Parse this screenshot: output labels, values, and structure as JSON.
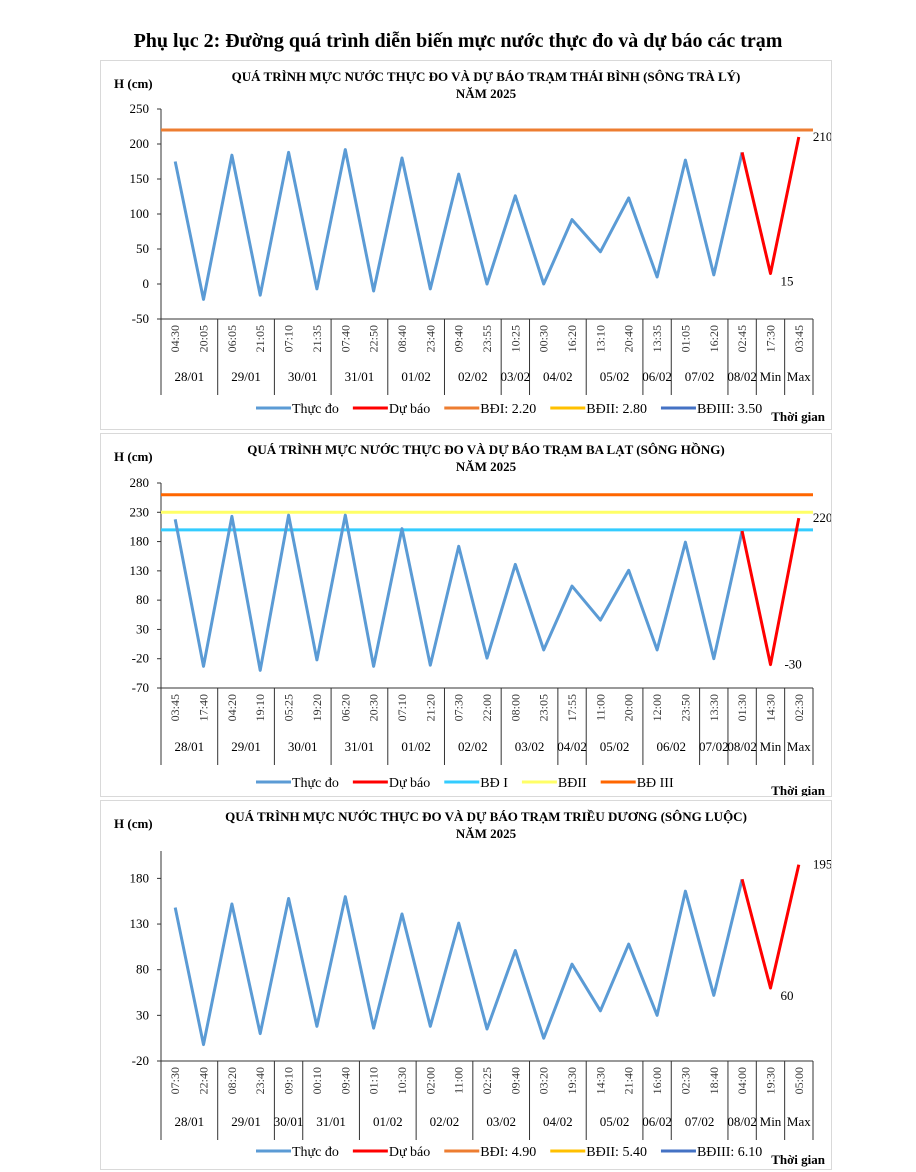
{
  "page_title": "Phụ lục 2: Đường quá trình diễn biến mực nước thực đo và dự báo các trạm",
  "colors": {
    "observed": "#5b9bd5",
    "forecast": "#ff0000",
    "bd1": "#ed7d31",
    "bd2": "#ffc000",
    "bd3": "#4472c4",
    "bd1_balat": "#33ccff",
    "bd2_balat": "#ffff66",
    "bd3_balat": "#ff6600"
  },
  "chart_data": [
    {
      "type": "line",
      "title": "QUÁ TRÌNH MỰC NƯỚC THỰC ĐO VÀ DỰ BÁO TRẠM THÁI BÌNH (SÔNG TRÀ LÝ)",
      "subtitle": "NĂM 2025",
      "ylabel": "H (cm)",
      "xlabel": "Thời gian",
      "ylim": [
        -50,
        250
      ],
      "yticks": [
        -50,
        0,
        50,
        100,
        150,
        200,
        250
      ],
      "times": [
        "04:30",
        "20:05",
        "06:05",
        "21:05",
        "07:10",
        "21:35",
        "07:40",
        "22:50",
        "08:40",
        "23:40",
        "09:40",
        "23:55",
        "10:25",
        "00:30",
        "16:20",
        "13:10",
        "20:40",
        "13:35",
        "01:05",
        "16:20",
        "02:45",
        "17:30",
        "03:45"
      ],
      "groups": [
        {
          "label": "28/01",
          "count": 2
        },
        {
          "label": "29/01",
          "count": 2
        },
        {
          "label": "30/01",
          "count": 2
        },
        {
          "label": "31/01",
          "count": 2
        },
        {
          "label": "01/02",
          "count": 2
        },
        {
          "label": "02/02",
          "count": 2
        },
        {
          "label": "03/02",
          "count": 1
        },
        {
          "label": "04/02",
          "count": 2
        },
        {
          "label": "05/02",
          "count": 2
        },
        {
          "label": "06/02",
          "count": 1
        },
        {
          "label": "07/02",
          "count": 2
        },
        {
          "label": "08/02",
          "count": 1
        },
        {
          "label": "Min",
          "count": 1
        },
        {
          "label": "Max",
          "count": 1
        }
      ],
      "series": [
        {
          "name": "Thực đo",
          "color": "#5b9bd5",
          "start": 0,
          "values": [
            175,
            -22,
            184,
            -16,
            188,
            -7,
            192,
            -10,
            180,
            -7,
            157,
            0,
            126,
            0,
            92,
            46,
            123,
            10,
            177,
            13,
            188
          ]
        },
        {
          "name": "Dự báo",
          "color": "#ff0000",
          "start": 20,
          "values": [
            188,
            15,
            210
          ]
        },
        {
          "name": "BĐI: 2.20",
          "color": "#ed7d31",
          "level": 220
        },
        {
          "name": "BĐII: 2.80",
          "color": "#ffc000",
          "level": 280
        },
        {
          "name": "BĐIII: 3.50",
          "color": "#4472c4",
          "level": 350
        }
      ],
      "data_labels": [
        {
          "index": 21,
          "text": "15",
          "pos": "below-right"
        },
        {
          "index": 22,
          "text": "210",
          "pos": "right"
        }
      ]
    },
    {
      "type": "line",
      "title": "QUÁ TRÌNH MỰC NƯỚC THỰC ĐO VÀ DỰ BÁO TRẠM BA LẠT (SÔNG HỒNG)",
      "subtitle": "NĂM 2025",
      "ylabel": "H (cm)",
      "xlabel": "Thời gian",
      "ylim": [
        -70,
        280
      ],
      "yticks": [
        -70,
        -20,
        30,
        80,
        130,
        180,
        230,
        280
      ],
      "times": [
        "03:45",
        "17:40",
        "04:20",
        "19:10",
        "05:25",
        "19:20",
        "06:20",
        "20:30",
        "07:10",
        "21:20",
        "07:30",
        "22:00",
        "08:00",
        "23:05",
        "17:55",
        "11:00",
        "20:00",
        "12:00",
        "23:50",
        "13:30",
        "01:30",
        "14:30",
        "02:30"
      ],
      "groups": [
        {
          "label": "28/01",
          "count": 2
        },
        {
          "label": "29/01",
          "count": 2
        },
        {
          "label": "30/01",
          "count": 2
        },
        {
          "label": "31/01",
          "count": 2
        },
        {
          "label": "01/02",
          "count": 2
        },
        {
          "label": "02/02",
          "count": 2
        },
        {
          "label": "03/02",
          "count": 2
        },
        {
          "label": "04/02",
          "count": 1
        },
        {
          "label": "05/02",
          "count": 2
        },
        {
          "label": "06/02",
          "count": 2
        },
        {
          "label": "07/02",
          "count": 1
        },
        {
          "label": "08/02",
          "count": 1
        },
        {
          "label": "Min",
          "count": 1
        },
        {
          "label": "Max",
          "count": 1
        }
      ],
      "series": [
        {
          "name": "Thực đo",
          "color": "#5b9bd5",
          "start": 0,
          "values": [
            218,
            -33,
            223,
            -40,
            225,
            -22,
            225,
            -33,
            202,
            -31,
            172,
            -19,
            141,
            -5,
            104,
            46,
            131,
            -5,
            179,
            -20,
            198
          ]
        },
        {
          "name": "Dự báo",
          "color": "#ff0000",
          "start": 20,
          "values": [
            198,
            -30,
            220
          ]
        },
        {
          "name": "BĐ I",
          "color": "#33ccff",
          "level": 200
        },
        {
          "name": "BĐII",
          "color": "#ffff66",
          "level": 230
        },
        {
          "name": "BĐ III",
          "color": "#ff6600",
          "level": 260
        }
      ],
      "data_labels": [
        {
          "index": 21,
          "text": "-30",
          "pos": "right"
        },
        {
          "index": 22,
          "text": "220",
          "pos": "right"
        }
      ]
    },
    {
      "type": "line",
      "title": "QUÁ TRÌNH MỰC NƯỚC THỰC ĐO VÀ DỰ BÁO TRẠM TRIỀU DƯƠNG (SÔNG LUỘC)",
      "subtitle": "NĂM 2025",
      "ylabel": "H (cm)",
      "xlabel": "Thời gian",
      "ylim": [
        -20,
        210
      ],
      "yticks": [
        -20,
        30,
        80,
        130,
        180
      ],
      "times": [
        "07:30",
        "22:40",
        "08:20",
        "23:40",
        "09:10",
        "00:10",
        "09:40",
        "01:10",
        "10:30",
        "02:00",
        "11:00",
        "02:25",
        "09:40",
        "03:20",
        "19:30",
        "14:30",
        "21:40",
        "16:00",
        "02:30",
        "18:40",
        "04:00",
        "19:30",
        "05:00"
      ],
      "groups": [
        {
          "label": "28/01",
          "count": 2
        },
        {
          "label": "29/01",
          "count": 2
        },
        {
          "label": "30/01",
          "count": 1
        },
        {
          "label": "31/01",
          "count": 2
        },
        {
          "label": "01/02",
          "count": 2
        },
        {
          "label": "02/02",
          "count": 2
        },
        {
          "label": "03/02",
          "count": 2
        },
        {
          "label": "04/02",
          "count": 2
        },
        {
          "label": "05/02",
          "count": 2
        },
        {
          "label": "06/02",
          "count": 1
        },
        {
          "label": "07/02",
          "count": 2
        },
        {
          "label": "08/02",
          "count": 1
        },
        {
          "label": "Min",
          "count": 1
        },
        {
          "label": "Max",
          "count": 1
        }
      ],
      "series": [
        {
          "name": "Thực đo",
          "color": "#5b9bd5",
          "start": 0,
          "values": [
            148,
            -2,
            152,
            10,
            158,
            18,
            160,
            16,
            141,
            18,
            131,
            15,
            101,
            5,
            86,
            35,
            108,
            30,
            166,
            52,
            179
          ]
        },
        {
          "name": "Dự báo",
          "color": "#ff0000",
          "start": 20,
          "values": [
            179,
            60,
            195
          ]
        },
        {
          "name": "BĐI: 4.90",
          "color": "#ed7d31",
          "level": 490
        },
        {
          "name": "BĐII: 5.40",
          "color": "#ffc000",
          "level": 540
        },
        {
          "name": "BĐIII: 6.10",
          "color": "#4472c4",
          "level": 610
        }
      ],
      "data_labels": [
        {
          "index": 21,
          "text": "60",
          "pos": "below-right"
        },
        {
          "index": 22,
          "text": "195",
          "pos": "right"
        }
      ]
    }
  ]
}
